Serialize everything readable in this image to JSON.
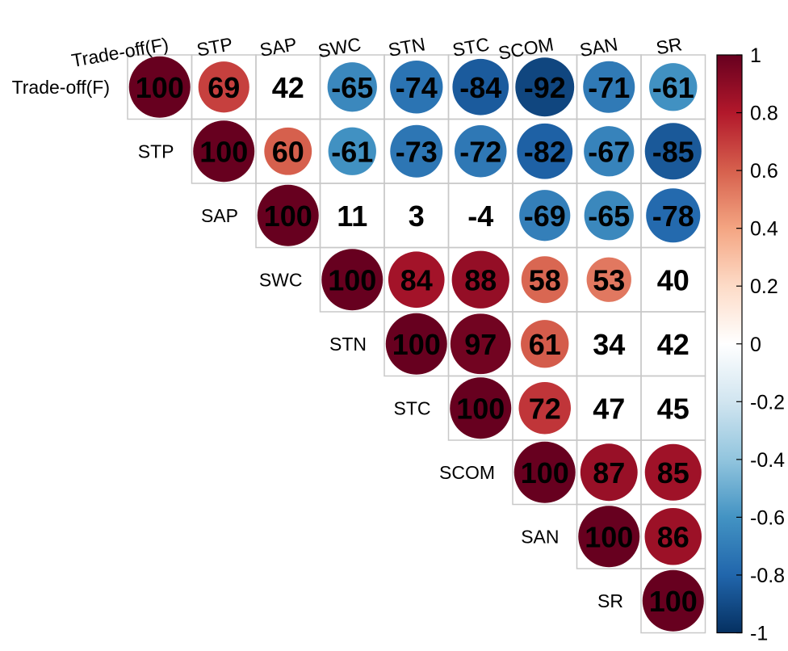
{
  "chart_data": {
    "type": "heatmap",
    "style": "upper-triangle correlation matrix, circle glyphs sized and colored by correlation, values printed x100",
    "labels": [
      "Trade-off(F)",
      "STP",
      "SAP",
      "SWC",
      "STN",
      "STC",
      "SCOM",
      "SAN",
      "SR"
    ],
    "matrix": [
      [
        100,
        69,
        42,
        -65,
        -74,
        -84,
        -92,
        -71,
        -61
      ],
      [
        null,
        100,
        60,
        -61,
        -73,
        -72,
        -82,
        -67,
        -85
      ],
      [
        null,
        null,
        100,
        11,
        3,
        -4,
        -69,
        -65,
        -78
      ],
      [
        null,
        null,
        null,
        100,
        84,
        88,
        58,
        53,
        40
      ],
      [
        null,
        null,
        null,
        null,
        100,
        97,
        61,
        34,
        42
      ],
      [
        null,
        null,
        null,
        null,
        null,
        100,
        72,
        47,
        45
      ],
      [
        null,
        null,
        null,
        null,
        null,
        null,
        100,
        87,
        85
      ],
      [
        null,
        null,
        null,
        null,
        null,
        null,
        null,
        100,
        86
      ],
      [
        null,
        null,
        null,
        null,
        null,
        null,
        null,
        null,
        100
      ]
    ],
    "significance_cutoff_abs": 50,
    "colorbar": {
      "range": [
        -1,
        1
      ],
      "ticks": [
        "1",
        "0.8",
        "0.6",
        "0.4",
        "0.2",
        "0",
        "-0.2",
        "-0.4",
        "-0.6",
        "-0.8",
        "-1"
      ],
      "colors": [
        "#67001F",
        "#B2182B",
        "#D6604D",
        "#F4A582",
        "#FDDBC7",
        "#FFFFFF",
        "#D1E5F0",
        "#92C5DE",
        "#4393C3",
        "#2166AC",
        "#053061"
      ]
    },
    "grid": true,
    "legend_placement": "right"
  }
}
